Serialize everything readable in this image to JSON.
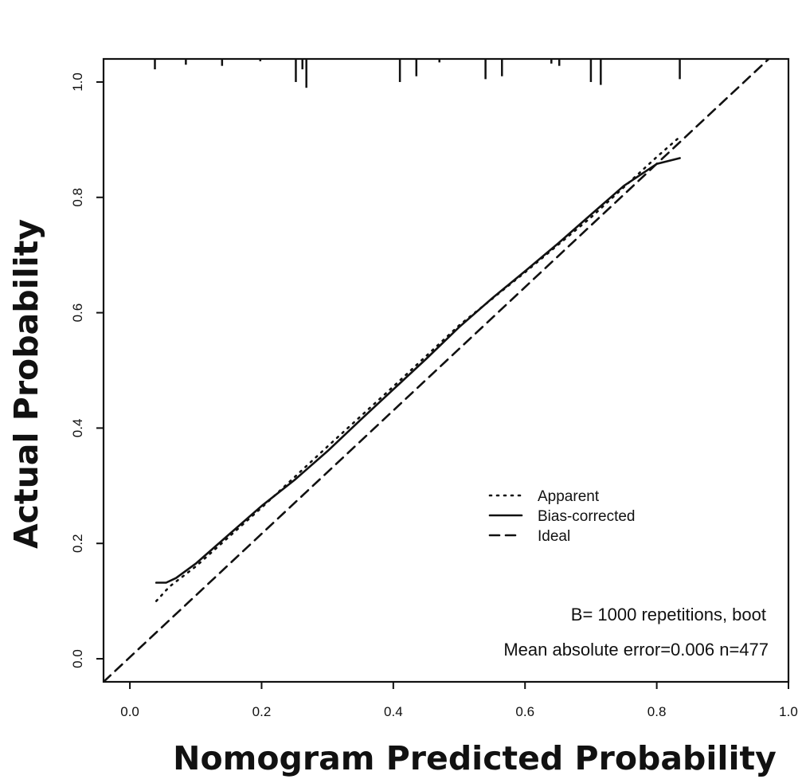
{
  "chart_data": {
    "type": "line",
    "xlabel": "Nomogram Predicted Probability",
    "ylabel": "Actual Probability",
    "xlim": [
      -0.04,
      1.0
    ],
    "ylim": [
      -0.04,
      1.04
    ],
    "x_ticks": [
      {
        "value": 0.0,
        "label": "0.0"
      },
      {
        "value": 0.2,
        "label": "0.2"
      },
      {
        "value": 0.4,
        "label": "0.4"
      },
      {
        "value": 0.6,
        "label": "0.6"
      },
      {
        "value": 0.8,
        "label": "0.8"
      },
      {
        "value": 1.0,
        "label": "1.0"
      }
    ],
    "y_ticks": [
      {
        "value": 0.0,
        "label": "0.0"
      },
      {
        "value": 0.2,
        "label": "0.2"
      },
      {
        "value": 0.4,
        "label": "0.4"
      },
      {
        "value": 0.6,
        "label": "0.6"
      },
      {
        "value": 0.8,
        "label": "0.8"
      },
      {
        "value": 1.0,
        "label": "1.0"
      }
    ],
    "grid": false,
    "legend_position": "center-right",
    "series": [
      {
        "name": "Apparent",
        "line_style": "dotted",
        "x": [
          0.04,
          0.06,
          0.1,
          0.2,
          0.3,
          0.4,
          0.5,
          0.6,
          0.7,
          0.8,
          0.835
        ],
        "y": [
          0.1,
          0.125,
          0.16,
          0.262,
          0.368,
          0.472,
          0.578,
          0.67,
          0.765,
          0.87,
          0.905
        ]
      },
      {
        "name": "Bias-corrected",
        "line_style": "solid",
        "x": [
          0.04,
          0.055,
          0.07,
          0.1,
          0.15,
          0.2,
          0.25,
          0.3,
          0.35,
          0.4,
          0.45,
          0.5,
          0.55,
          0.6,
          0.65,
          0.7,
          0.75,
          0.8,
          0.835
        ],
        "y": [
          0.132,
          0.132,
          0.14,
          0.165,
          0.215,
          0.265,
          0.31,
          0.36,
          0.414,
          0.467,
          0.52,
          0.575,
          0.625,
          0.672,
          0.72,
          0.77,
          0.82,
          0.858,
          0.868
        ]
      },
      {
        "name": "Ideal",
        "line_style": "dashed",
        "x": [
          -0.04,
          0.97
        ],
        "y": [
          -0.04,
          1.04
        ]
      }
    ],
    "rug_ticks": [
      {
        "x": 0.038,
        "len": 0.018
      },
      {
        "x": 0.085,
        "len": 0.01
      },
      {
        "x": 0.14,
        "len": 0.012
      },
      {
        "x": 0.198,
        "len": 0.004
      },
      {
        "x": 0.252,
        "len": 0.04
      },
      {
        "x": 0.262,
        "len": 0.018
      },
      {
        "x": 0.268,
        "len": 0.05
      },
      {
        "x": 0.41,
        "len": 0.04
      },
      {
        "x": 0.435,
        "len": 0.03
      },
      {
        "x": 0.47,
        "len": 0.006
      },
      {
        "x": 0.54,
        "len": 0.035
      },
      {
        "x": 0.565,
        "len": 0.03
      },
      {
        "x": 0.64,
        "len": 0.008
      },
      {
        "x": 0.652,
        "len": 0.012
      },
      {
        "x": 0.7,
        "len": 0.04
      },
      {
        "x": 0.715,
        "len": 0.045
      },
      {
        "x": 0.835,
        "len": 0.035
      }
    ],
    "annotations": [
      "B= 1000 repetitions, boot",
      "Mean absolute error=0.006 n=477"
    ]
  },
  "legend": {
    "items": [
      {
        "label": "Apparent",
        "line_style": "dotted"
      },
      {
        "label": "Bias-corrected",
        "line_style": "solid"
      },
      {
        "label": "Ideal",
        "line_style": "dashed"
      }
    ]
  }
}
